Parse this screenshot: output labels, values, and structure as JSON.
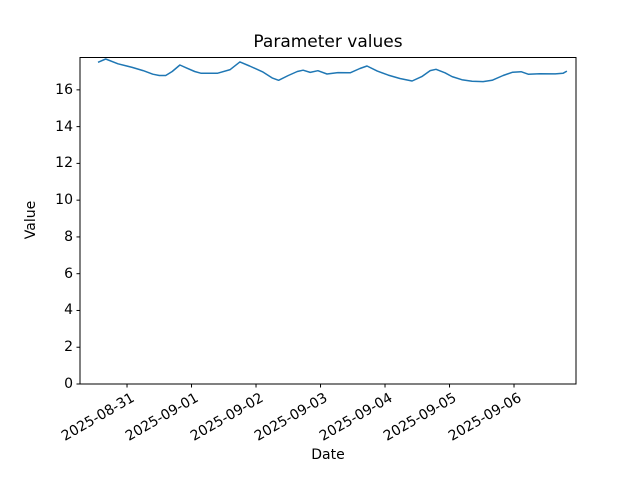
{
  "chart_data": {
    "type": "line",
    "title": "Parameter values",
    "xlabel": "Date",
    "ylabel": "Value",
    "x_tick_labels": [
      "2025-08-31",
      "2025-09-01",
      "2025-09-02",
      "2025-09-03",
      "2025-09-04",
      "2025-09-05",
      "2025-09-06"
    ],
    "x_tick_days": [
      0,
      1,
      2,
      3,
      4,
      5,
      6
    ],
    "y_ticks": [
      0,
      2,
      4,
      6,
      8,
      10,
      12,
      14,
      16
    ],
    "xlim_days": [
      -0.729,
      6.961
    ],
    "ylim": [
      0,
      17.76
    ],
    "grid": false,
    "legend": "none",
    "line_color": "#1f77b4",
    "axis_color": "#000000",
    "series": [
      {
        "name": "Parameter values",
        "x_unit": "days since 2025-08-31 00:00",
        "points": [
          {
            "d": -0.45,
            "v": 17.5
          },
          {
            "d": -0.33,
            "v": 17.68
          },
          {
            "d": -0.14,
            "v": 17.42
          },
          {
            "d": 0.08,
            "v": 17.22
          },
          {
            "d": 0.25,
            "v": 17.05
          },
          {
            "d": 0.4,
            "v": 16.85
          },
          {
            "d": 0.5,
            "v": 16.78
          },
          {
            "d": 0.6,
            "v": 16.78
          },
          {
            "d": 0.7,
            "v": 17.0
          },
          {
            "d": 0.82,
            "v": 17.35
          },
          {
            "d": 0.93,
            "v": 17.18
          },
          {
            "d": 1.05,
            "v": 17.0
          },
          {
            "d": 1.15,
            "v": 16.9
          },
          {
            "d": 1.4,
            "v": 16.9
          },
          {
            "d": 1.6,
            "v": 17.1
          },
          {
            "d": 1.75,
            "v": 17.52
          },
          {
            "d": 1.9,
            "v": 17.3
          },
          {
            "d": 2.1,
            "v": 16.98
          },
          {
            "d": 2.25,
            "v": 16.65
          },
          {
            "d": 2.35,
            "v": 16.52
          },
          {
            "d": 2.5,
            "v": 16.78
          },
          {
            "d": 2.64,
            "v": 17.0
          },
          {
            "d": 2.73,
            "v": 17.07
          },
          {
            "d": 2.84,
            "v": 16.95
          },
          {
            "d": 2.96,
            "v": 17.04
          },
          {
            "d": 3.1,
            "v": 16.86
          },
          {
            "d": 3.27,
            "v": 16.94
          },
          {
            "d": 3.46,
            "v": 16.93
          },
          {
            "d": 3.61,
            "v": 17.16
          },
          {
            "d": 3.72,
            "v": 17.3
          },
          {
            "d": 3.88,
            "v": 17.02
          },
          {
            "d": 4.05,
            "v": 16.8
          },
          {
            "d": 4.23,
            "v": 16.62
          },
          {
            "d": 4.42,
            "v": 16.48
          },
          {
            "d": 4.57,
            "v": 16.72
          },
          {
            "d": 4.7,
            "v": 17.05
          },
          {
            "d": 4.79,
            "v": 17.12
          },
          {
            "d": 4.93,
            "v": 16.93
          },
          {
            "d": 5.04,
            "v": 16.72
          },
          {
            "d": 5.19,
            "v": 16.55
          },
          {
            "d": 5.35,
            "v": 16.47
          },
          {
            "d": 5.52,
            "v": 16.45
          },
          {
            "d": 5.66,
            "v": 16.52
          },
          {
            "d": 5.83,
            "v": 16.78
          },
          {
            "d": 5.98,
            "v": 16.96
          },
          {
            "d": 6.11,
            "v": 16.99
          },
          {
            "d": 6.22,
            "v": 16.85
          },
          {
            "d": 6.4,
            "v": 16.88
          },
          {
            "d": 6.64,
            "v": 16.87
          },
          {
            "d": 6.76,
            "v": 16.9
          },
          {
            "d": 6.82,
            "v": 17.02
          }
        ]
      }
    ]
  }
}
